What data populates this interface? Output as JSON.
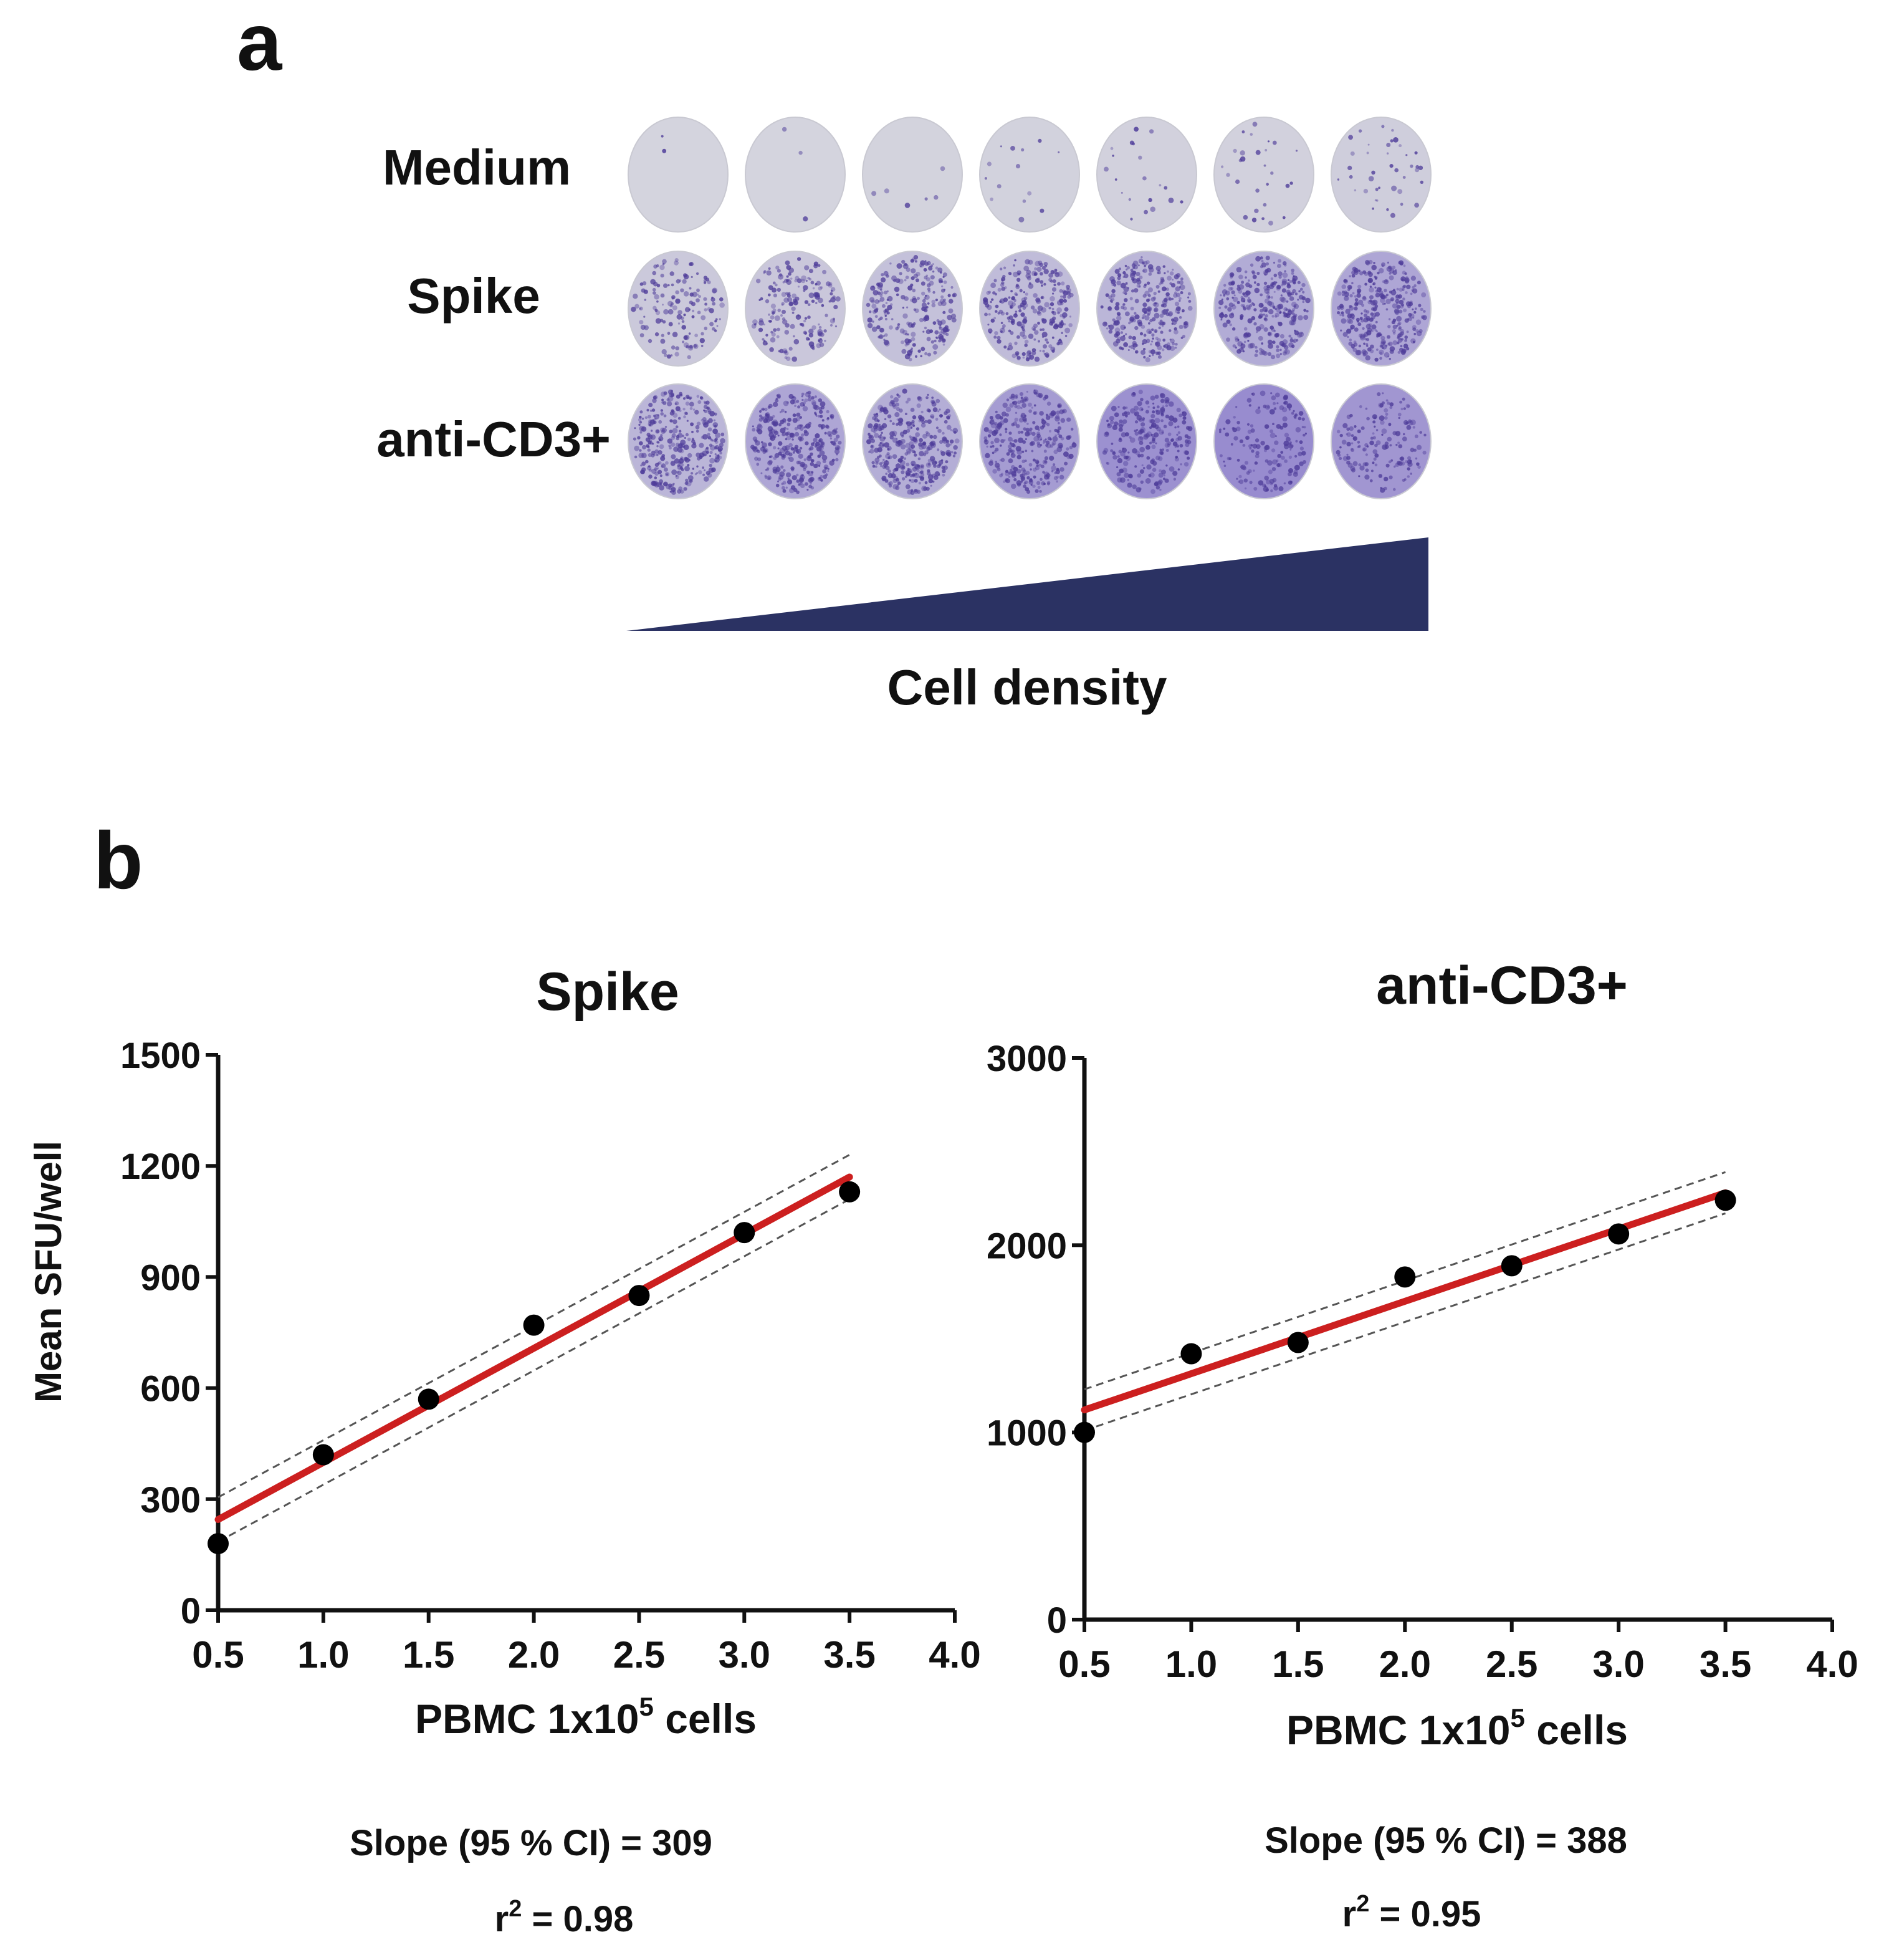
{
  "panel_a": {
    "letter": "a",
    "row_labels": [
      "Medium",
      "Spike",
      "anti-CD3+"
    ],
    "wedge_label": "Cell density",
    "wedge_color": "#2b3263",
    "well_base_color": "#d6d6de",
    "spot_color": "#4f3d9a"
  },
  "panel_b": {
    "letter": "b",
    "shared_ylabel": "Mean SFU/well"
  },
  "chart_data": [
    {
      "type": "scatter",
      "title": "Spike",
      "xlabel_base": "PBMC 1x10",
      "xlabel_exp": "5",
      "xlabel_tail": " cells",
      "ylabel": "Mean SFU/well",
      "xlim": [
        0.5,
        4.0
      ],
      "ylim": [
        0,
        1500
      ],
      "xticks": [
        "0.5",
        "1.0",
        "1.5",
        "2.0",
        "2.5",
        "3.0",
        "3.5",
        "4.0"
      ],
      "yticks": [
        "0",
        "300",
        "600",
        "900",
        "1200",
        "1500"
      ],
      "x": [
        0.5,
        1.0,
        1.5,
        2.0,
        2.5,
        3.0,
        3.5
      ],
      "y": [
        180,
        420,
        570,
        770,
        850,
        1020,
        1130
      ],
      "fit": {
        "x": [
          0.5,
          3.5
        ],
        "y": [
          245,
          1170
        ],
        "color": "#cc1f1f"
      },
      "ci_upper": {
        "x": [
          0.5,
          3.5
        ],
        "y": [
          305,
          1230
        ]
      },
      "ci_lower": {
        "x": [
          0.5,
          3.5
        ],
        "y": [
          185,
          1110
        ]
      },
      "slope_text": "Slope (95 % CI) = 309",
      "r2_prefix": "r",
      "r2_exp": "2",
      "r2_value": " = 0.98"
    },
    {
      "type": "scatter",
      "title": "anti-CD3+",
      "xlabel_base": "PBMC 1x10",
      "xlabel_exp": "5",
      "xlabel_tail": " cells",
      "ylabel": "",
      "xlim": [
        0.5,
        4.0
      ],
      "ylim": [
        0,
        3000
      ],
      "xticks": [
        "0.5",
        "1.0",
        "1.5",
        "2.0",
        "2.5",
        "3.0",
        "3.5",
        "4.0"
      ],
      "yticks": [
        "0",
        "1000",
        "2000",
        "3000"
      ],
      "x": [
        0.5,
        1.0,
        1.5,
        2.0,
        2.5,
        3.0,
        3.5
      ],
      "y": [
        1000,
        1420,
        1480,
        1830,
        1890,
        2060,
        2240
      ],
      "fit": {
        "x": [
          0.5,
          3.5
        ],
        "y": [
          1120,
          2280
        ],
        "color": "#cc1f1f"
      },
      "ci_upper": {
        "x": [
          0.5,
          3.5
        ],
        "y": [
          1230,
          2390
        ]
      },
      "ci_lower": {
        "x": [
          0.5,
          3.5
        ],
        "y": [
          1010,
          2170
        ]
      },
      "slope_text": "Slope (95 % CI) = 388",
      "r2_prefix": "r",
      "r2_exp": "2",
      "r2_value": " = 0.95"
    }
  ]
}
